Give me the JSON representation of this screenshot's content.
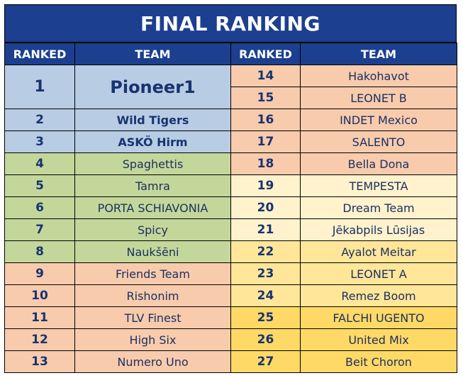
{
  "title": "FINAL RANKING",
  "headers": {
    "ranked": "RANKED",
    "team": "TEAM"
  },
  "colors": {
    "header": "#1c3f8f",
    "top3": "#b8cce4",
    "green": "#c4d79b",
    "orange": "#f8cbad",
    "cream": "#fff2cc",
    "yellow": "#ffe699",
    "gold": "#ffd966"
  },
  "left": [
    {
      "rank": "1",
      "team": "Pioneer1"
    },
    {
      "rank": "2",
      "team": "Wild Tigers"
    },
    {
      "rank": "3",
      "team": "ASKÖ Hirm"
    },
    {
      "rank": "4",
      "team": "Spaghettis"
    },
    {
      "rank": "5",
      "team": "Tamra"
    },
    {
      "rank": "6",
      "team": "PORTA SCHIAVONIA"
    },
    {
      "rank": "7",
      "team": "Spicy"
    },
    {
      "rank": "8",
      "team": "Naukšēni"
    },
    {
      "rank": "9",
      "team": "Friends Team"
    },
    {
      "rank": "10",
      "team": "Rishonim"
    },
    {
      "rank": "11",
      "team": "TLV Finest"
    },
    {
      "rank": "12",
      "team": "High Six"
    },
    {
      "rank": "13",
      "team": "Numero Uno"
    }
  ],
  "right": [
    {
      "rank": "14",
      "team": "Hakohavot"
    },
    {
      "rank": "15",
      "team": "LEONET B"
    },
    {
      "rank": "16",
      "team": "INDET Mexico"
    },
    {
      "rank": "17",
      "team": "SALENTO"
    },
    {
      "rank": "18",
      "team": "Bella Dona"
    },
    {
      "rank": "19",
      "team": "TEMPESTA"
    },
    {
      "rank": "20",
      "team": "Dream Team"
    },
    {
      "rank": "21",
      "team": "Jēkabpils Lūsijas"
    },
    {
      "rank": "22",
      "team": "Ayalot Meitar"
    },
    {
      "rank": "23",
      "team": "LEONET A"
    },
    {
      "rank": "24",
      "team": "Remez Boom"
    },
    {
      "rank": "25",
      "team": "FALCHI UGENTO"
    },
    {
      "rank": "26",
      "team": "United Mix"
    },
    {
      "rank": "27",
      "team": "Beit Choron"
    }
  ]
}
